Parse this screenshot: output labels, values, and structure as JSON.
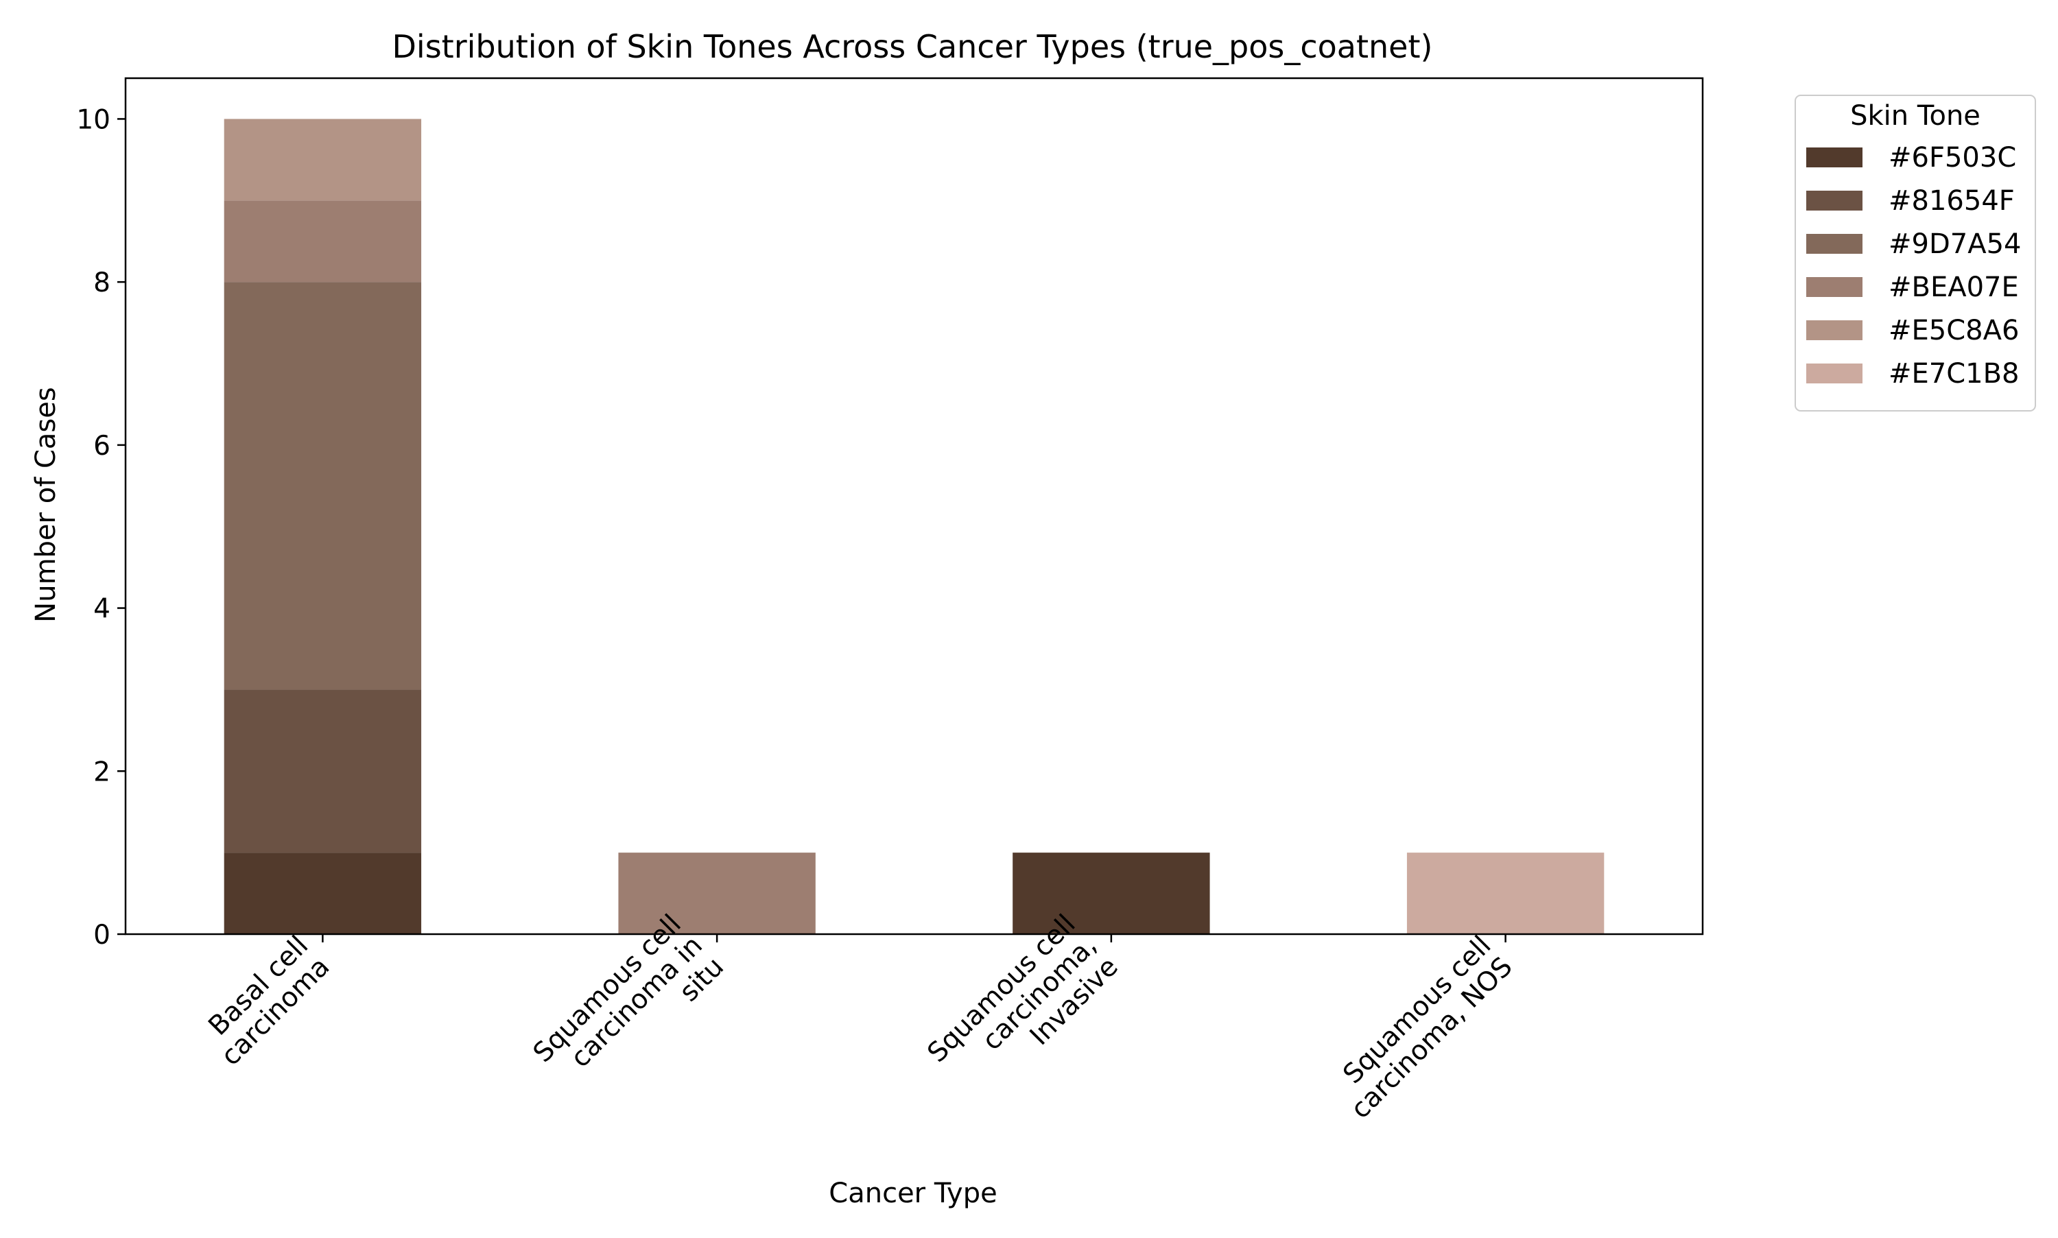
{
  "chart_data": {
    "type": "bar",
    "stacked": true,
    "title": "Distribution of Skin Tones Across Cancer Types (true_pos_coatnet)",
    "xlabel": "Cancer Type",
    "ylabel": "Number of Cases",
    "ylim": [
      0,
      10.5
    ],
    "yticks": [
      0,
      2,
      4,
      6,
      8,
      10
    ],
    "grid": false,
    "legend_title": "Skin Tone",
    "legend_position": "outside-top-right",
    "categories": [
      [
        "Basal cell",
        "carcinoma"
      ],
      [
        "Squamous cell",
        "carcinoma in",
        "situ"
      ],
      [
        "Squamous cell",
        "carcinoma,",
        "Invasive"
      ],
      [
        "Squamous cell",
        "carcinoma, NOS"
      ]
    ],
    "series": [
      {
        "name": "#6F503C",
        "color": "#523A2C",
        "values": [
          1,
          0,
          1,
          0
        ]
      },
      {
        "name": "#81654F",
        "color": "#6B5244",
        "values": [
          2,
          0,
          0,
          0
        ]
      },
      {
        "name": "#9D7A54",
        "color": "#83695A",
        "values": [
          5,
          0,
          0,
          0
        ]
      },
      {
        "name": "#BEA07E",
        "color": "#9D7E71",
        "values": [
          1,
          1,
          0,
          0
        ]
      },
      {
        "name": "#E5C8A6",
        "color": "#B39486",
        "values": [
          1,
          0,
          0,
          0
        ]
      },
      {
        "name": "#E7C1B8",
        "color": "#CCAA9F",
        "values": [
          0,
          0,
          0,
          1
        ]
      }
    ]
  }
}
